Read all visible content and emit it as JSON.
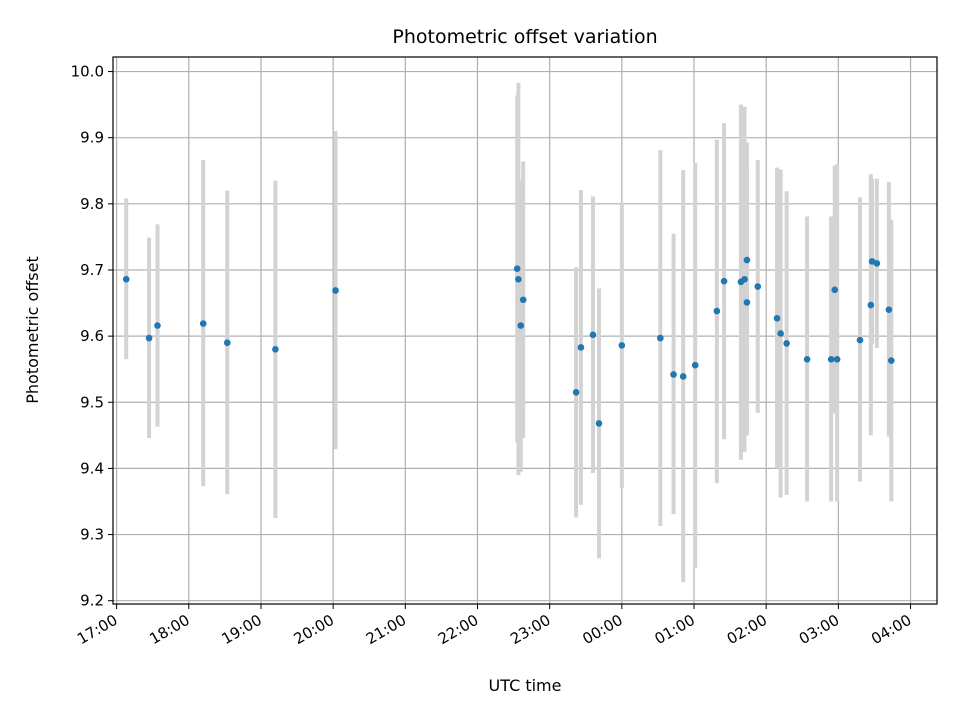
{
  "chart_data": {
    "type": "scatter",
    "title": "Photometric offset variation",
    "xlabel": "UTC time",
    "ylabel": "Photometric offset",
    "x_axis": "time",
    "xlim": [
      "16:57",
      "04:22"
    ],
    "ylim": [
      9.195,
      10.022
    ],
    "x_ticks": [
      "17:00",
      "18:00",
      "19:00",
      "20:00",
      "21:00",
      "22:00",
      "23:00",
      "00:00",
      "01:00",
      "02:00",
      "03:00",
      "04:00"
    ],
    "y_ticks": [
      "9.2",
      "9.3",
      "9.4",
      "9.5",
      "9.6",
      "9.7",
      "9.8",
      "9.9",
      "10.0"
    ],
    "grid": true,
    "legend": "none",
    "colors": {
      "point": "#1f77b4",
      "error_bar": "#d3d3d3"
    },
    "series": [
      {
        "points": [
          {
            "t": "17:08",
            "y": 9.686,
            "lo": 9.565,
            "hi": 9.808
          },
          {
            "t": "17:27",
            "y": 9.597,
            "lo": 9.446,
            "hi": 9.749
          },
          {
            "t": "17:34",
            "y": 9.616,
            "lo": 9.463,
            "hi": 9.769
          },
          {
            "t": "18:12",
            "y": 9.619,
            "lo": 9.373,
            "hi": 9.866
          },
          {
            "t": "18:32",
            "y": 9.59,
            "lo": 9.361,
            "hi": 9.82
          },
          {
            "t": "19:12",
            "y": 9.58,
            "lo": 9.325,
            "hi": 9.835
          },
          {
            "t": "20:02",
            "y": 9.669,
            "lo": 9.429,
            "hi": 9.91
          },
          {
            "t": "22:33",
            "y": 9.702,
            "lo": 9.44,
            "hi": 9.964
          },
          {
            "t": "22:34",
            "y": 9.686,
            "lo": 9.39,
            "hi": 9.983
          },
          {
            "t": "22:36",
            "y": 9.616,
            "lo": 9.395,
            "hi": 9.836
          },
          {
            "t": "22:38",
            "y": 9.655,
            "lo": 9.446,
            "hi": 9.864
          },
          {
            "t": "23:22",
            "y": 9.515,
            "lo": 9.326,
            "hi": 9.704
          },
          {
            "t": "23:26",
            "y": 9.583,
            "lo": 9.345,
            "hi": 9.821
          },
          {
            "t": "23:36",
            "y": 9.602,
            "lo": 9.393,
            "hi": 9.811
          },
          {
            "t": "23:41",
            "y": 9.468,
            "lo": 9.264,
            "hi": 9.672
          },
          {
            "t": "00:00",
            "y": 9.586,
            "lo": 9.37,
            "hi": 9.802
          },
          {
            "t": "00:32",
            "y": 9.597,
            "lo": 9.313,
            "hi": 9.881
          },
          {
            "t": "00:43",
            "y": 9.542,
            "lo": 9.331,
            "hi": 9.755
          },
          {
            "t": "00:51",
            "y": 9.539,
            "lo": 9.228,
            "hi": 9.851
          },
          {
            "t": "01:01",
            "y": 9.556,
            "lo": 9.25,
            "hi": 9.862
          },
          {
            "t": "01:19",
            "y": 9.638,
            "lo": 9.378,
            "hi": 9.897
          },
          {
            "t": "01:25",
            "y": 9.683,
            "lo": 9.444,
            "hi": 9.922
          },
          {
            "t": "01:39",
            "y": 9.682,
            "lo": 9.413,
            "hi": 9.95
          },
          {
            "t": "01:42",
            "y": 9.686,
            "lo": 9.425,
            "hi": 9.947
          },
          {
            "t": "01:44",
            "y": 9.715,
            "lo": 9.452,
            "hi": 9.893
          },
          {
            "t": "01:44",
            "y": 9.651,
            "lo": 9.45,
            "hi": 9.852
          },
          {
            "t": "01:53",
            "y": 9.675,
            "lo": 9.484,
            "hi": 9.866
          },
          {
            "t": "02:09",
            "y": 9.627,
            "lo": 9.4,
            "hi": 9.855
          },
          {
            "t": "02:12",
            "y": 9.604,
            "lo": 9.356,
            "hi": 9.852
          },
          {
            "t": "02:17",
            "y": 9.589,
            "lo": 9.36,
            "hi": 9.819
          },
          {
            "t": "02:34",
            "y": 9.565,
            "lo": 9.35,
            "hi": 9.781
          },
          {
            "t": "02:54",
            "y": 9.565,
            "lo": 9.35,
            "hi": 9.781
          },
          {
            "t": "02:57",
            "y": 9.67,
            "lo": 9.483,
            "hi": 9.858
          },
          {
            "t": "02:59",
            "y": 9.565,
            "lo": 9.35,
            "hi": 9.86
          },
          {
            "t": "03:18",
            "y": 9.594,
            "lo": 9.38,
            "hi": 9.81
          },
          {
            "t": "03:27",
            "y": 9.647,
            "lo": 9.45,
            "hi": 9.845
          },
          {
            "t": "03:28",
            "y": 9.713,
            "lo": 9.588,
            "hi": 9.838
          },
          {
            "t": "03:32",
            "y": 9.71,
            "lo": 9.582,
            "hi": 9.838
          },
          {
            "t": "03:42",
            "y": 9.64,
            "lo": 9.448,
            "hi": 9.833
          },
          {
            "t": "03:44",
            "y": 9.563,
            "lo": 9.35,
            "hi": 9.776
          }
        ]
      }
    ]
  }
}
